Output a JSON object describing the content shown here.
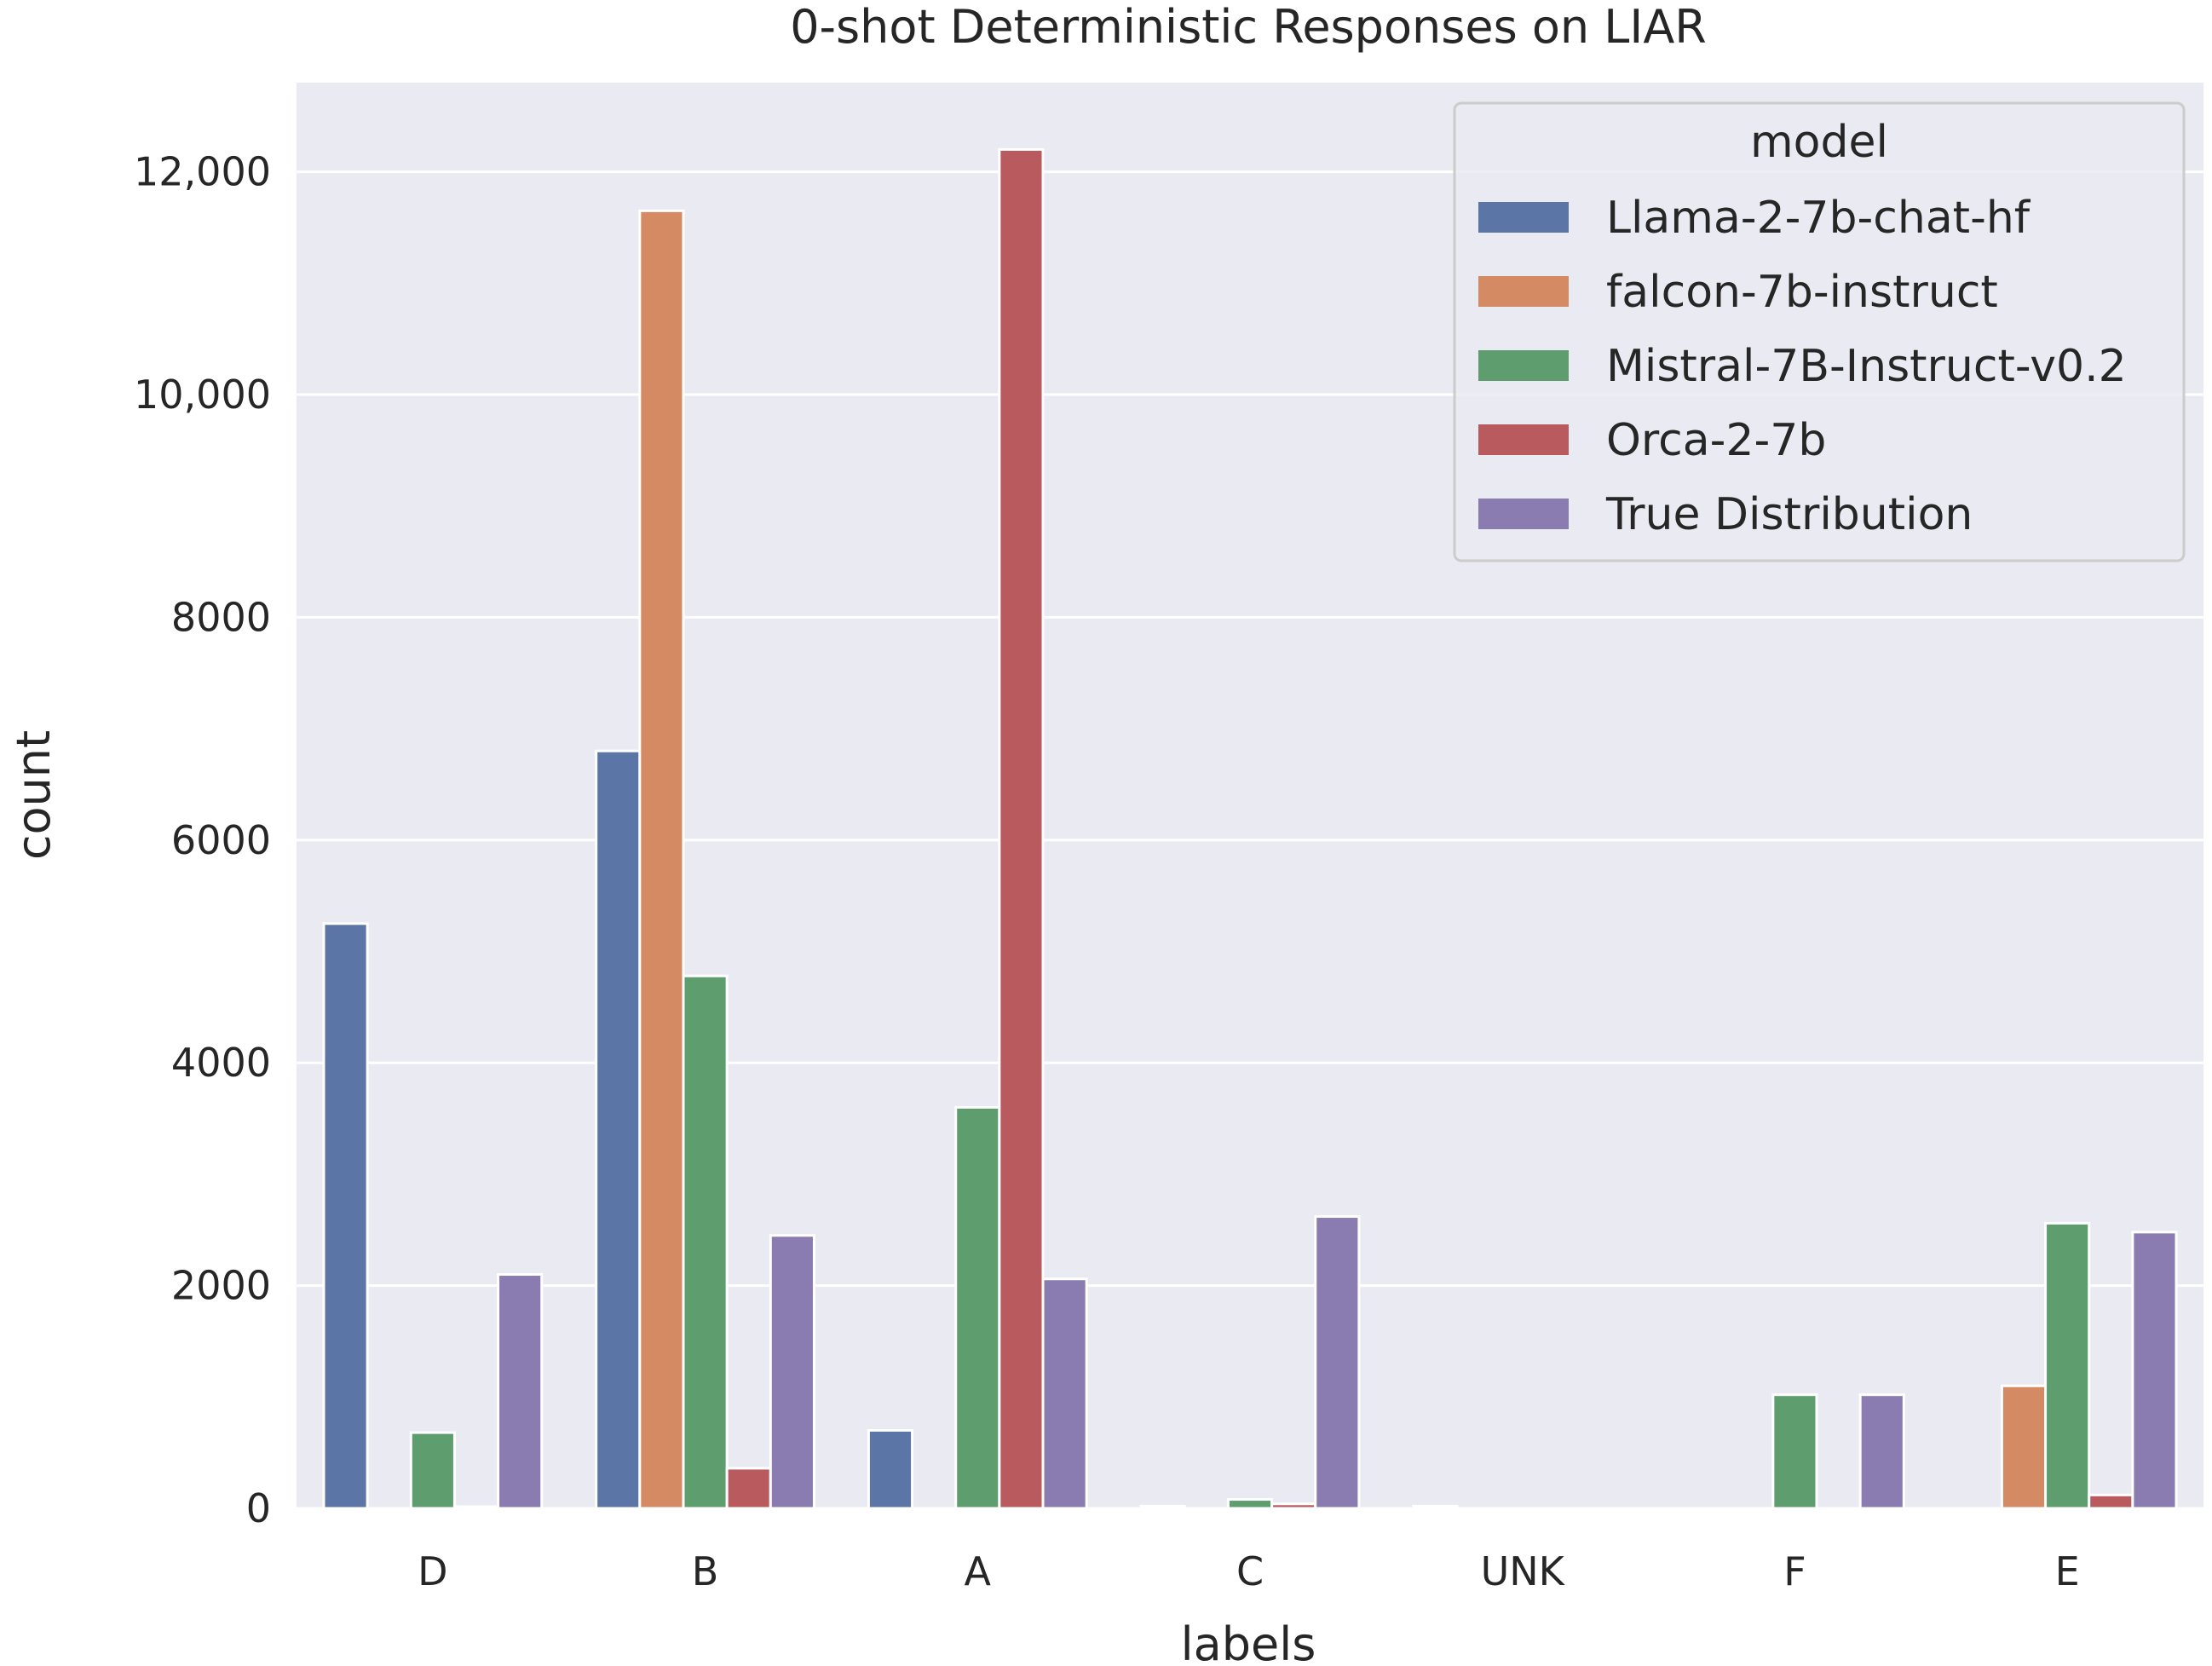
{
  "chart_data": {
    "type": "bar",
    "title": "0-shot Deterministic Responses on LIAR",
    "xlabel": "labels",
    "ylabel": "count",
    "ylim": [
      0,
      12800
    ],
    "yticks": [
      {
        "value": 0,
        "label": "0"
      },
      {
        "value": 2000,
        "label": "2000"
      },
      {
        "value": 4000,
        "label": "4000"
      },
      {
        "value": 6000,
        "label": "6000"
      },
      {
        "value": 8000,
        "label": "8000"
      },
      {
        "value": 10000,
        "label": "10,000"
      },
      {
        "value": 12000,
        "label": "12,000"
      }
    ],
    "grid": true,
    "legend_title": "model",
    "legend_position": "top-right",
    "categories": [
      "D",
      "B",
      "A",
      "C",
      "UNK",
      "F",
      "E"
    ],
    "series": [
      {
        "name": "Llama-2-7b-chat-hf",
        "color": "#5a75a6",
        "values": [
          5250,
          6800,
          700,
          20,
          20,
          0,
          0
        ]
      },
      {
        "name": "falcon-7b-instruct",
        "color": "#d48a63",
        "values": [
          0,
          11650,
          0,
          0,
          0,
          0,
          1100
        ]
      },
      {
        "name": "Mistral-7B-Instruct-v0.2",
        "color": "#5e9e6e",
        "values": [
          680,
          4780,
          3600,
          80,
          0,
          1020,
          2560
        ]
      },
      {
        "name": "Orca-2-7b",
        "color": "#b95a5f",
        "values": [
          15,
          360,
          12200,
          40,
          0,
          0,
          120
        ]
      },
      {
        "name": "True Distribution",
        "color": "#8a7cb0",
        "values": [
          2100,
          2450,
          2060,
          2620,
          0,
          1020,
          2480
        ]
      }
    ]
  }
}
